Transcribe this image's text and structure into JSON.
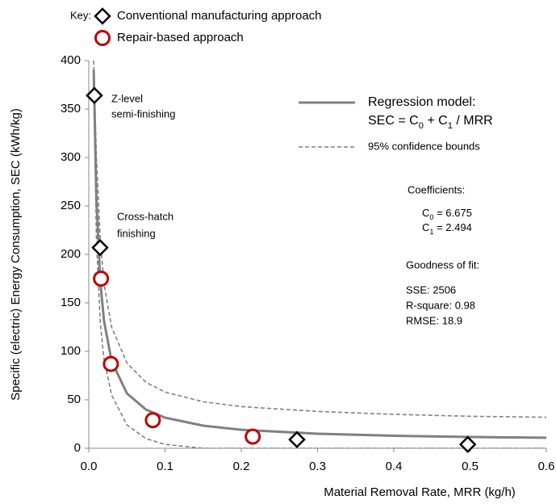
{
  "chart_data": {
    "type": "scatter",
    "key_label": "Key:",
    "xlabel": "Material Removal Rate, MRR (kg/h)",
    "ylabel": "Specific (electric) Energy Consumption, SEC (kWh/kg)",
    "xlim": [
      0,
      0.6
    ],
    "xticks": [
      {
        "value": 0,
        "label": "0.0"
      },
      0.1,
      0.2,
      0.3,
      0.4,
      0.5,
      0.6
    ],
    "ylim": [
      0,
      400
    ],
    "yticks": [
      0,
      50,
      100,
      150,
      200,
      250,
      300,
      350,
      400
    ],
    "grid": false,
    "series": [
      {
        "name": "Conventional manufacturing approach",
        "color": "#000000",
        "marker": "diamond",
        "x": [
          0.0074,
          0.0148,
          0.273,
          0.497
        ],
        "values": [
          364,
          207,
          9,
          4
        ]
      },
      {
        "name": "Repair-based approach",
        "color": "#c00000",
        "marker": "circle",
        "x": [
          0.016,
          0.029,
          0.084,
          0.215
        ],
        "values": [
          175,
          87,
          29,
          12
        ]
      }
    ],
    "regression": {
      "name": "Regression model:",
      "color": "#808080",
      "x": [
        0.0065,
        0.01,
        0.015,
        0.02,
        0.03,
        0.05,
        0.075,
        0.1,
        0.15,
        0.2,
        0.3,
        0.4,
        0.5,
        0.6
      ],
      "values": [
        390.4,
        256.1,
        172.9,
        131.4,
        89.8,
        56.6,
        39.9,
        31.6,
        23.3,
        19.1,
        15.0,
        12.9,
        11.7,
        10.8
      ]
    },
    "bounds": {
      "name": "95% confidence bounds",
      "color": "#808080",
      "x": [
        0.0065,
        0.01,
        0.015,
        0.02,
        0.03,
        0.05,
        0.075,
        0.1,
        0.15,
        0.2,
        0.3,
        0.4,
        0.5,
        0.6
      ],
      "upper": [
        400,
        300,
        215,
        170,
        125,
        88,
        68,
        58,
        48,
        43,
        38,
        35,
        33,
        32
      ],
      "lower": [
        380,
        215,
        130,
        92,
        55,
        24,
        10,
        4,
        0,
        0,
        0,
        0,
        0,
        0
      ]
    },
    "annotations": {
      "z_level": [
        "Z-level",
        "semi-finishing"
      ],
      "cross_hatch": [
        "Cross-hatch",
        "finishing"
      ],
      "formula": [
        "SEC = C",
        "0",
        " + C",
        "1",
        " / MRR"
      ],
      "coefficients_title": "Coefficients:",
      "c0": [
        "C",
        "0",
        " = 6.675"
      ],
      "c1": [
        "C",
        "1",
        " = 2.494"
      ],
      "fit_title": "Goodness of fit:",
      "fit": [
        "SSE: 2506",
        "R-square: 0.98",
        "RMSE: 18.9"
      ]
    }
  }
}
